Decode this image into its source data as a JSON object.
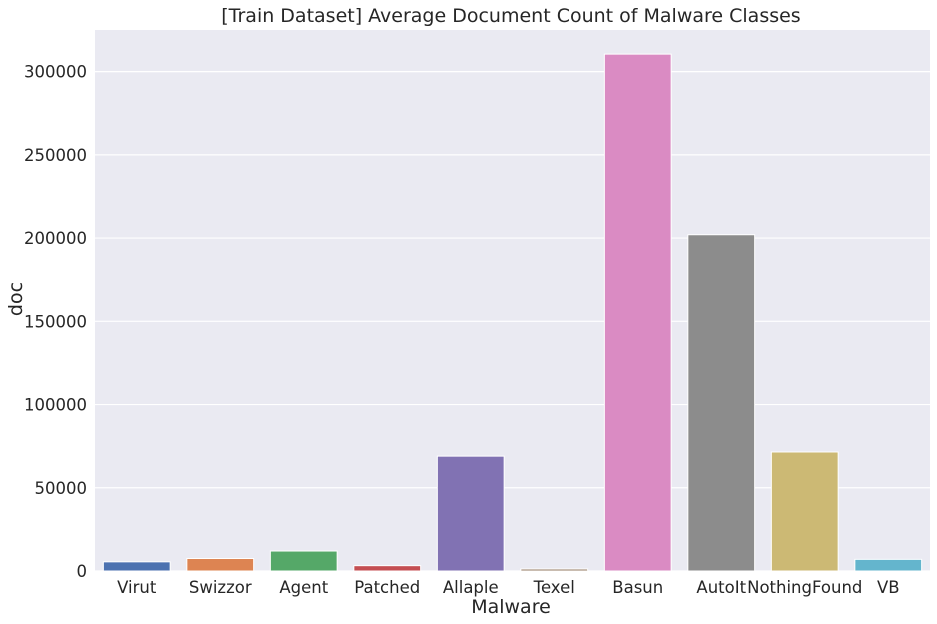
{
  "chart_data": {
    "type": "bar",
    "title": "[Train Dataset] Average Document Count of Malware Classes",
    "xlabel": "Malware",
    "ylabel": "doc",
    "categories": [
      "Virut",
      "Swizzor",
      "Agent",
      "Patched",
      "Allaple",
      "Texel",
      "Basun",
      "AutoIt",
      "NothingFound",
      "VB"
    ],
    "values": [
      5500,
      7500,
      12000,
      3200,
      69000,
      1200,
      310500,
      202000,
      71500,
      7000
    ],
    "colors": [
      "#4c72b0",
      "#dd8452",
      "#55a868",
      "#c44e52",
      "#8172b3",
      "#937860",
      "#da8bc3",
      "#8c8c8c",
      "#ccb974",
      "#64b5cd"
    ],
    "ylim": [
      0,
      325000
    ],
    "yticks": [
      0,
      50000,
      100000,
      150000,
      200000,
      250000,
      300000
    ],
    "ytick_labels": [
      "0",
      "50000",
      "100000",
      "150000",
      "200000",
      "250000",
      "300000"
    ],
    "grid": true,
    "background": "#eaeaf2"
  }
}
